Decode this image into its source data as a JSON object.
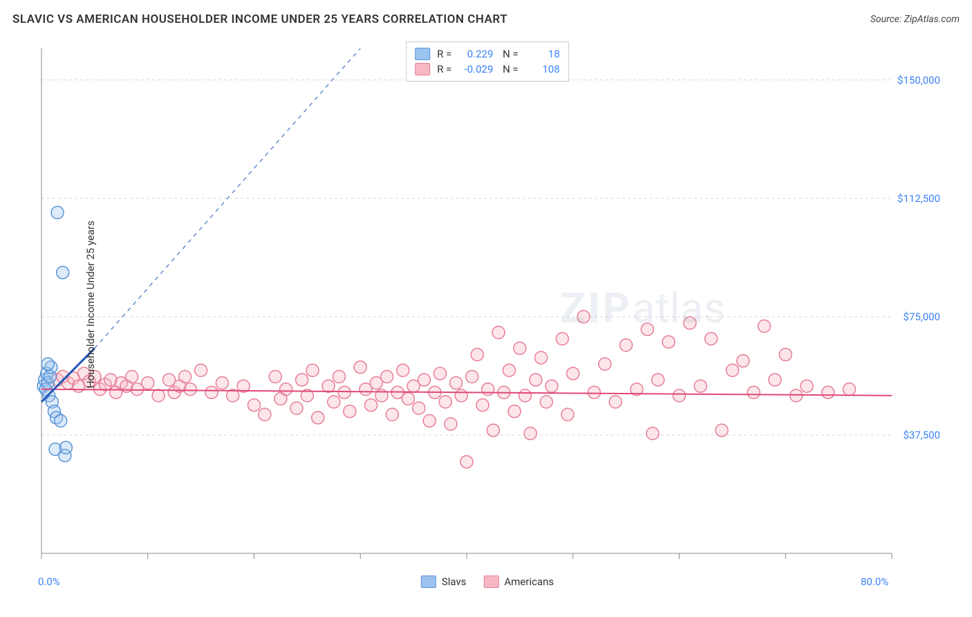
{
  "header": {
    "title": "SLAVIC VS AMERICAN HOUSEHOLDER INCOME UNDER 25 YEARS CORRELATION CHART",
    "source": "Source: ZipAtlas.com"
  },
  "watermark": {
    "zip": "ZIP",
    "atlas": "atlas"
  },
  "chart": {
    "type": "scatter",
    "ylabel": "Householder Income Under 25 years",
    "xlim": [
      0,
      80
    ],
    "ylim": [
      0,
      160000
    ],
    "x_ticks": [
      0,
      10,
      20,
      30,
      40,
      50,
      60,
      70,
      80
    ],
    "x_tick_labels": {
      "0": "0.0%",
      "80": "80.0%"
    },
    "y_gridlines": [
      37500,
      75000,
      112500,
      150000
    ],
    "y_tick_labels": {
      "37500": "$37,500",
      "75000": "$75,000",
      "112500": "$112,500",
      "150000": "$150,000"
    },
    "background_color": "#ffffff",
    "grid_color": "#d8d8d8",
    "grid_dash": "4 4",
    "axis_color": "#888888",
    "marker_radius": 9,
    "marker_fill_opacity": 0.35,
    "marker_stroke_width": 1.5,
    "series": {
      "slavs": {
        "label": "Slavs",
        "color_fill": "#9cc2ef",
        "color_stroke": "#5a95d8",
        "R": "0.229",
        "N": "18",
        "trend": {
          "x1": 0,
          "y1": 48000,
          "x2": 5,
          "y2": 65000,
          "x2_ext": 30,
          "y2_ext": 160000,
          "color": "#2255bb",
          "width": 2
        },
        "points": [
          [
            0.2,
            53000
          ],
          [
            0.3,
            55000
          ],
          [
            0.4,
            52000
          ],
          [
            0.5,
            57000
          ],
          [
            0.6,
            54000
          ],
          [
            0.7,
            50000
          ],
          [
            0.8,
            56000
          ],
          [
            1.0,
            48000
          ],
          [
            1.2,
            45000
          ],
          [
            1.4,
            43000
          ],
          [
            1.5,
            108000
          ],
          [
            2.0,
            89000
          ],
          [
            1.8,
            42000
          ],
          [
            1.3,
            33000
          ],
          [
            2.2,
            31000
          ],
          [
            2.3,
            33500
          ],
          [
            0.9,
            59000
          ],
          [
            0.6,
            60000
          ]
        ]
      },
      "americans": {
        "label": "Americans",
        "color_fill": "#f7b8c4",
        "color_stroke": "#e77d96",
        "R": "-0.029",
        "N": "108",
        "trend": {
          "x1": 0,
          "y1": 52000,
          "x2": 80,
          "y2": 50000,
          "color": "#e04878",
          "width": 2
        },
        "points": [
          [
            1.5,
            55000
          ],
          [
            2,
            56000
          ],
          [
            2.5,
            54000
          ],
          [
            3,
            55500
          ],
          [
            3.5,
            53000
          ],
          [
            4,
            57000
          ],
          [
            4.5,
            54500
          ],
          [
            5,
            56000
          ],
          [
            5.5,
            52000
          ],
          [
            6,
            53500
          ],
          [
            6.5,
            55000
          ],
          [
            7,
            51000
          ],
          [
            7.5,
            54000
          ],
          [
            8,
            53000
          ],
          [
            8.5,
            56000
          ],
          [
            9,
            52000
          ],
          [
            10,
            54000
          ],
          [
            11,
            50000
          ],
          [
            12,
            55000
          ],
          [
            12.5,
            51000
          ],
          [
            13,
            53000
          ],
          [
            13.5,
            56000
          ],
          [
            14,
            52000
          ],
          [
            15,
            58000
          ],
          [
            16,
            51000
          ],
          [
            17,
            54000
          ],
          [
            18,
            50000
          ],
          [
            19,
            53000
          ],
          [
            20,
            47000
          ],
          [
            21,
            44000
          ],
          [
            22,
            56000
          ],
          [
            22.5,
            49000
          ],
          [
            23,
            52000
          ],
          [
            24,
            46000
          ],
          [
            24.5,
            55000
          ],
          [
            25,
            50000
          ],
          [
            25.5,
            58000
          ],
          [
            26,
            43000
          ],
          [
            27,
            53000
          ],
          [
            27.5,
            48000
          ],
          [
            28,
            56000
          ],
          [
            28.5,
            51000
          ],
          [
            29,
            45000
          ],
          [
            30,
            59000
          ],
          [
            30.5,
            52000
          ],
          [
            31,
            47000
          ],
          [
            31.5,
            54000
          ],
          [
            32,
            50000
          ],
          [
            32.5,
            56000
          ],
          [
            33,
            44000
          ],
          [
            33.5,
            51000
          ],
          [
            34,
            58000
          ],
          [
            34.5,
            49000
          ],
          [
            35,
            53000
          ],
          [
            35.5,
            46000
          ],
          [
            36,
            55000
          ],
          [
            36.5,
            42000
          ],
          [
            37,
            51000
          ],
          [
            37.5,
            57000
          ],
          [
            38,
            48000
          ],
          [
            38.5,
            41000
          ],
          [
            39,
            54000
          ],
          [
            39.5,
            50000
          ],
          [
            40,
            29000
          ],
          [
            40.5,
            56000
          ],
          [
            41,
            63000
          ],
          [
            41.5,
            47000
          ],
          [
            42,
            52000
          ],
          [
            42.5,
            39000
          ],
          [
            43,
            70000
          ],
          [
            43.5,
            51000
          ],
          [
            44,
            58000
          ],
          [
            44.5,
            45000
          ],
          [
            45,
            65000
          ],
          [
            45.5,
            50000
          ],
          [
            46,
            38000
          ],
          [
            46.5,
            55000
          ],
          [
            47,
            62000
          ],
          [
            47.5,
            48000
          ],
          [
            48,
            53000
          ],
          [
            49,
            68000
          ],
          [
            49.5,
            44000
          ],
          [
            50,
            57000
          ],
          [
            51,
            75000
          ],
          [
            52,
            51000
          ],
          [
            53,
            60000
          ],
          [
            54,
            48000
          ],
          [
            55,
            66000
          ],
          [
            56,
            52000
          ],
          [
            57,
            71000
          ],
          [
            57.5,
            38000
          ],
          [
            58,
            55000
          ],
          [
            59,
            67000
          ],
          [
            60,
            50000
          ],
          [
            61,
            73000
          ],
          [
            62,
            53000
          ],
          [
            63,
            68000
          ],
          [
            64,
            39000
          ],
          [
            65,
            58000
          ],
          [
            66,
            61000
          ],
          [
            67,
            51000
          ],
          [
            68,
            72000
          ],
          [
            69,
            55000
          ],
          [
            70,
            63000
          ],
          [
            71,
            50000
          ],
          [
            72,
            53000
          ],
          [
            74,
            51000
          ],
          [
            76,
            52000
          ]
        ]
      }
    }
  }
}
